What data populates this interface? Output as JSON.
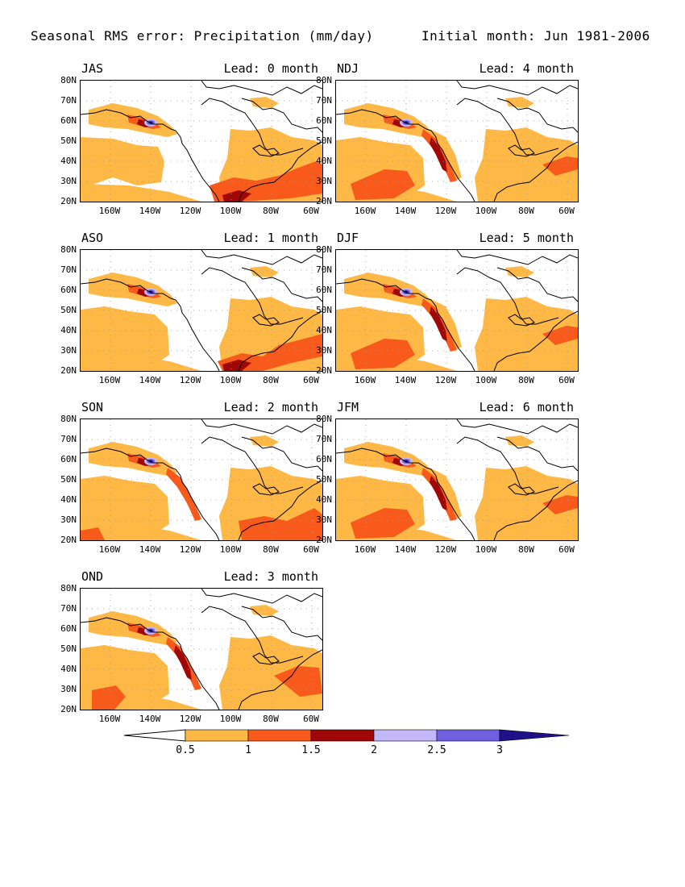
{
  "header": {
    "title": "Seasonal RMS error: Precipitation (mm/day)",
    "subtitle": "Initial month: Jun 1981-2006"
  },
  "axes": {
    "lat_labels": [
      "80N",
      "70N",
      "60N",
      "50N",
      "40N",
      "30N",
      "20N"
    ],
    "lon_labels": [
      "160W",
      "140W",
      "120W",
      "100W",
      "80W",
      "60W"
    ]
  },
  "panels": [
    {
      "season": "JAS",
      "lead": "Lead: 0 month",
      "col": 0,
      "row": 0,
      "variant": 0
    },
    {
      "season": "NDJ",
      "lead": "Lead: 4 month",
      "col": 1,
      "row": 0,
      "variant": 4
    },
    {
      "season": "ASO",
      "lead": "Lead: 1 month",
      "col": 0,
      "row": 1,
      "variant": 1
    },
    {
      "season": "DJF",
      "lead": "Lead: 5 month",
      "col": 1,
      "row": 1,
      "variant": 5
    },
    {
      "season": "SON",
      "lead": "Lead: 2 month",
      "col": 0,
      "row": 2,
      "variant": 2
    },
    {
      "season": "JFM",
      "lead": "Lead: 6 month",
      "col": 1,
      "row": 2,
      "variant": 6
    },
    {
      "season": "OND",
      "lead": "Lead: 3 month",
      "col": 0,
      "row": 3,
      "variant": 3
    }
  ],
  "colorbar": {
    "labels": [
      "0.5",
      "1",
      "1.5",
      "2",
      "2.5",
      "3"
    ],
    "colors": [
      "#ffffff",
      "#fdb845",
      "#f85a1c",
      "#a00808",
      "#c4b8f8",
      "#7060e0",
      "#20108a"
    ]
  }
}
